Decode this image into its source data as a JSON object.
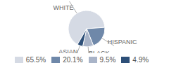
{
  "chart_data": {
    "type": "pie",
    "categories": [
      "WHITE",
      "HISPANIC",
      "BLACK",
      "ASIAN"
    ],
    "values": [
      65.5,
      20.1,
      9.5,
      4.9
    ],
    "value_labels": [
      "65.5%",
      "20.1%",
      "9.5%",
      "4.9%"
    ],
    "colors": [
      "#d5dae4",
      "#6f88a9",
      "#a9b4c8",
      "#2d4f78"
    ],
    "legend": "bottom"
  }
}
